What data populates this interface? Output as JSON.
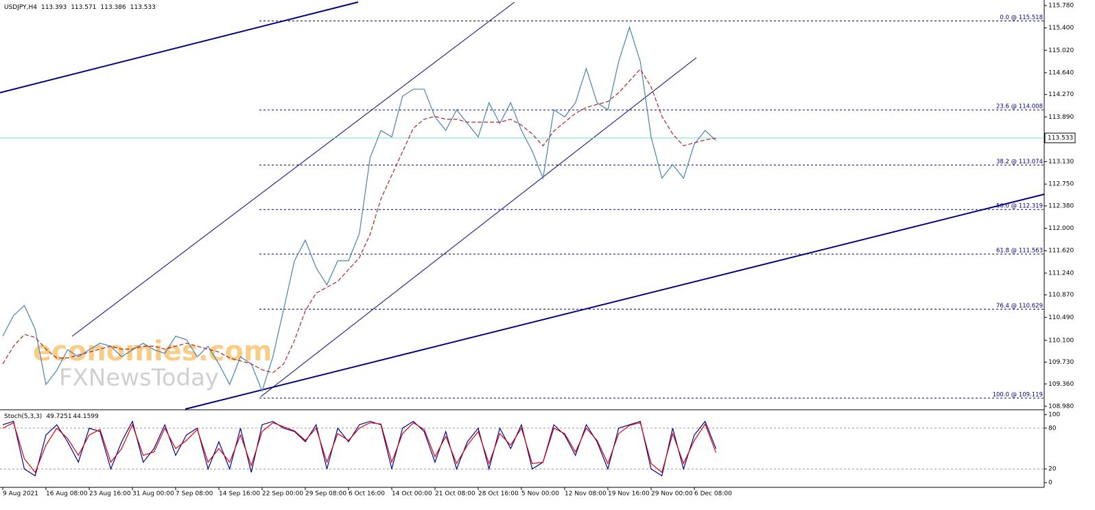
{
  "chart_data": [
    {
      "type": "line",
      "title": "USDJPY,H4",
      "ohlc": [
        113.393,
        113.571,
        113.386,
        113.533
      ],
      "last_price": 113.533,
      "categories": [
        "9 Aug 2021",
        null,
        null,
        null,
        "16 Aug 08:00",
        null,
        null,
        null,
        "23 Aug 16:00",
        null,
        null,
        null,
        "31 Aug 00:00",
        null,
        null,
        null,
        "7 Sep 08:00",
        null,
        null,
        null,
        "14 Sep 16:00",
        null,
        null,
        null,
        "22 Sep 00:00",
        null,
        null,
        null,
        "29 Sep 08:00",
        null,
        null,
        null,
        "6 Oct 16:00",
        null,
        null,
        null,
        "14 Oct 00:00",
        null,
        null,
        null,
        "21 Oct 08:00",
        null,
        null,
        null,
        "28 Oct 16:00",
        null,
        null,
        null,
        "5 Nov 00:00",
        null,
        null,
        null,
        "12 Nov 08:00",
        null,
        null,
        null,
        "19 Nov 16:00",
        null,
        null,
        null,
        "29 Nov 00:00",
        null,
        null,
        null,
        "6 Dec 08:00",
        null,
        null,
        null
      ],
      "series": [
        {
          "name": "USDJPY",
          "color": "#4682b4",
          "values": [
            110.17,
            110.52,
            110.69,
            110.29,
            109.35,
            109.59,
            109.94,
            109.82,
            109.94,
            110.05,
            110.0,
            109.82,
            109.94,
            110.05,
            109.94,
            109.88,
            110.17,
            110.11,
            109.82,
            110.0,
            109.7,
            109.35,
            109.82,
            109.7,
            109.24,
            109.82,
            110.63,
            111.45,
            111.8,
            111.33,
            111.04,
            111.45,
            111.45,
            111.91,
            113.2,
            113.66,
            113.55,
            114.24,
            114.36,
            114.36,
            113.89,
            113.66,
            114.01,
            113.78,
            113.55,
            114.13,
            113.78,
            114.13,
            113.66,
            113.31,
            112.85,
            114.01,
            113.89,
            114.13,
            114.71,
            114.13,
            114.01,
            114.83,
            115.41,
            114.83,
            113.55,
            112.85,
            113.08,
            112.85,
            113.43,
            113.66,
            113.49,
            null
          ]
        },
        {
          "name": "MA",
          "color": "#b22222",
          "values": [
            109.7,
            110.0,
            110.2,
            110.15,
            109.95,
            109.8,
            109.8,
            109.85,
            109.9,
            109.95,
            110.0,
            109.95,
            109.95,
            110.0,
            110.0,
            109.95,
            110.0,
            110.05,
            110.0,
            109.95,
            109.9,
            109.8,
            109.75,
            109.7,
            109.6,
            109.55,
            109.7,
            110.1,
            110.6,
            110.9,
            111.0,
            111.1,
            111.3,
            111.5,
            111.9,
            112.5,
            112.9,
            113.3,
            113.7,
            113.85,
            113.9,
            113.85,
            113.85,
            113.8,
            113.8,
            113.8,
            113.8,
            113.85,
            113.75,
            113.6,
            113.4,
            113.65,
            113.8,
            113.95,
            114.05,
            114.1,
            114.15,
            114.3,
            114.5,
            114.7,
            114.4,
            113.9,
            113.6,
            113.4,
            113.45,
            113.5,
            113.53,
            null
          ]
        }
      ],
      "fib_levels": [
        {
          "label": "0.0 @ 115.518",
          "value": 115.518
        },
        {
          "label": "23.6 @ 114.008",
          "value": 114.008
        },
        {
          "label": "38.2 @ 113.074",
          "value": 113.074
        },
        {
          "label": "50.0 @ 112.319",
          "value": 112.319
        },
        {
          "label": "61.8 @ 111.563",
          "value": 111.563
        },
        {
          "label": "76.4 @ 110.629",
          "value": 110.629
        },
        {
          "label": "100.0 @ 109.119",
          "value": 109.119
        }
      ],
      "watermark": [
        "economies.com",
        "FXNewsToday"
      ],
      "ylim": [
        108.933,
        115.873
      ],
      "yticks": [
        {
          "value": 115.78,
          "label": "115.780"
        },
        {
          "value": 115.4,
          "label": "115.400"
        },
        {
          "value": 115.02,
          "label": "115.020"
        },
        {
          "value": 114.64,
          "label": "114.640"
        },
        {
          "value": 114.27,
          "label": "114.270"
        },
        {
          "value": 113.89,
          "label": "113.890"
        },
        {
          "value": 113.51,
          "label": "113.510"
        },
        {
          "value": 113.13,
          "label": "113.130"
        },
        {
          "value": 112.75,
          "label": "112.750"
        },
        {
          "value": 112.38,
          "label": "112.380"
        },
        {
          "value": 112.0,
          "label": "112.000"
        },
        {
          "value": 111.62,
          "label": "111.620"
        },
        {
          "value": 111.24,
          "label": "111.240"
        },
        {
          "value": 110.87,
          "label": "110.870"
        },
        {
          "value": 110.49,
          "label": "110.490"
        },
        {
          "value": 110.1,
          "label": "110.100"
        },
        {
          "value": 109.73,
          "label": "109.730"
        },
        {
          "value": 109.36,
          "label": "109.360"
        },
        {
          "value": 108.98,
          "label": "108.980"
        }
      ]
    },
    {
      "type": "line",
      "title": "Stoch(5,3,3)",
      "readings": [
        49.7251,
        44.1599
      ],
      "series": [
        {
          "name": "Main",
          "color": "#000099",
          "values": [
            85,
            90,
            20,
            10,
            70,
            85,
            60,
            30,
            80,
            75,
            20,
            60,
            90,
            30,
            50,
            85,
            40,
            70,
            80,
            20,
            60,
            20,
            80,
            15,
            85,
            90,
            80,
            75,
            60,
            85,
            20,
            80,
            60,
            85,
            90,
            85,
            20,
            80,
            90,
            75,
            30,
            75,
            20,
            60,
            80,
            20,
            80,
            50,
            85,
            20,
            30,
            85,
            70,
            40,
            85,
            60,
            20,
            80,
            85,
            90,
            20,
            10,
            80,
            20,
            70,
            90,
            49.7251,
            null
          ]
        },
        {
          "name": "Signal",
          "color": "#dd0000",
          "values": [
            80,
            88,
            35,
            15,
            55,
            80,
            65,
            40,
            70,
            78,
            30,
            50,
            85,
            40,
            45,
            80,
            50,
            62,
            78,
            30,
            50,
            30,
            70,
            25,
            75,
            88,
            82,
            76,
            62,
            80,
            30,
            72,
            62,
            80,
            88,
            86,
            30,
            72,
            88,
            78,
            38,
            68,
            28,
            55,
            75,
            28,
            72,
            55,
            80,
            28,
            30,
            80,
            72,
            45,
            80,
            62,
            28,
            72,
            84,
            88,
            28,
            15,
            72,
            28,
            62,
            86,
            44.1599,
            null
          ]
        }
      ],
      "levels": [
        80,
        20
      ],
      "ylim": [
        -7,
        106
      ],
      "yticks": [
        100,
        80,
        20,
        0
      ]
    }
  ]
}
